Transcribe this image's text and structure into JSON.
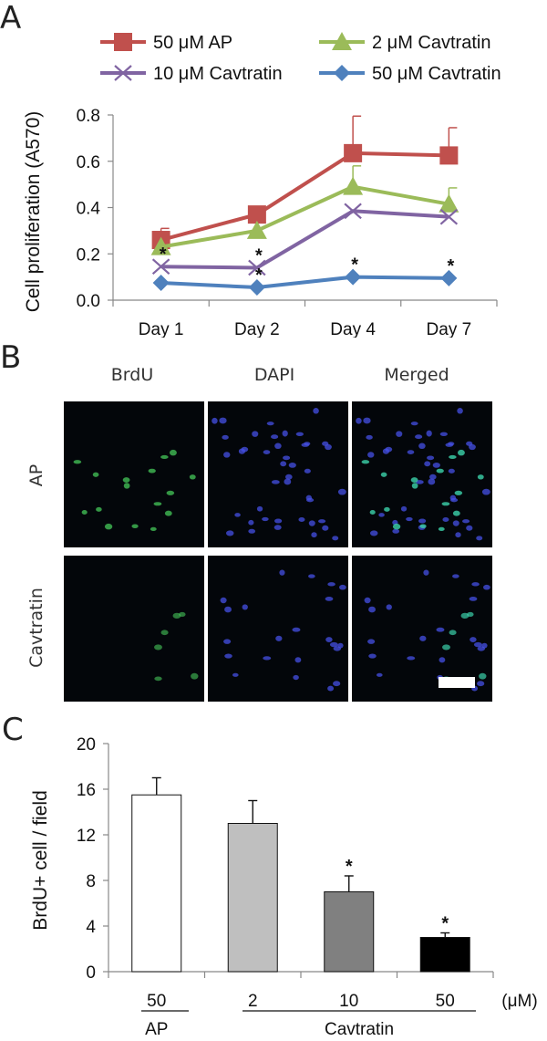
{
  "panels": {
    "a": "A",
    "b": "B",
    "c": "C"
  },
  "chart_data": [
    {
      "type": "line",
      "categories": [
        "Day 1",
        "Day 2",
        "Day 4",
        "Day 7"
      ],
      "ylabel": "Cell proliferation (A570)",
      "ylim": [
        0,
        0.8
      ],
      "yticks": [
        "0.0",
        "0.2",
        "0.4",
        "0.6",
        "0.8"
      ],
      "legend_position": "top",
      "series": [
        {
          "name": "50 μM AP",
          "color": "#c0504d",
          "marker": "square",
          "values": [
            0.26,
            0.37,
            0.635,
            0.625
          ],
          "errors": [
            0.05,
            0.0,
            0.16,
            0.12
          ],
          "sig": [
            false,
            false,
            false,
            false
          ]
        },
        {
          "name": "2 μM Cavtratin",
          "color": "#9bbb59",
          "marker": "triangle",
          "values": [
            0.23,
            0.3,
            0.49,
            0.415
          ],
          "errors": [
            0.0,
            0.0,
            0.09,
            0.07
          ],
          "sig": [
            false,
            false,
            false,
            false
          ]
        },
        {
          "name": "10 μM Cavtratin",
          "color": "#8064a2",
          "marker": "x",
          "values": [
            0.145,
            0.14,
            0.385,
            0.36
          ],
          "errors": [
            0.0,
            0.0,
            0.0,
            0.0
          ],
          "sig": [
            true,
            true,
            false,
            false
          ]
        },
        {
          "name": "50 μM Cavtratin",
          "color": "#4f81bd",
          "marker": "diamond",
          "values": [
            0.075,
            0.055,
            0.1,
            0.095
          ],
          "errors": [
            0.0,
            0.0,
            0.0,
            0.0
          ],
          "sig": [
            false,
            true,
            true,
            true
          ]
        }
      ]
    },
    {
      "type": "bar",
      "categories": [
        "50",
        "2",
        "10",
        "50"
      ],
      "values": [
        15.5,
        13.0,
        7.0,
        3.0
      ],
      "errors": [
        1.5,
        2.0,
        1.4,
        0.4
      ],
      "sig": [
        false,
        false,
        true,
        true
      ],
      "colors": [
        "#ffffff",
        "#bfbfbf",
        "#808080",
        "#000000"
      ],
      "ylabel": "BrdU+ cell / field",
      "ylim": [
        0,
        20
      ],
      "yticks": [
        "0",
        "4",
        "8",
        "12",
        "16",
        "20"
      ],
      "unit": "(μM)",
      "groups": [
        {
          "label": "AP"
        },
        {
          "label": "Cavtratin"
        }
      ]
    }
  ],
  "microscopy": {
    "columns": [
      "BrdU",
      "DAPI",
      "Merged"
    ],
    "rows": [
      "AP",
      "Cavtratin"
    ]
  },
  "sig_marker": "*"
}
